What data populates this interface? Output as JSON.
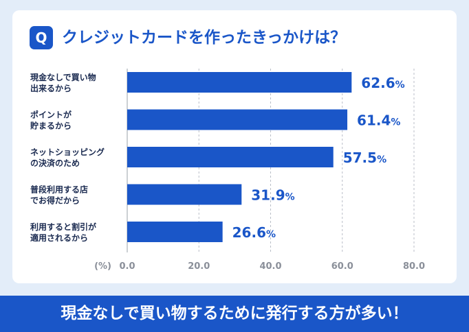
{
  "question_badge": "Q",
  "title": "クレジットカードを作ったきっかけは？",
  "footer_text": "現金なしで買い物するために発行する方が多い！",
  "colors": {
    "accent": "#1a56c8",
    "background": "#e3edf9",
    "card": "#ffffff",
    "axis_text": "#8a8f99"
  },
  "chart_data": {
    "type": "bar",
    "orientation": "horizontal",
    "title": "クレジットカードを作ったきっかけは？",
    "ylabel_unit": "(%)",
    "categories": [
      [
        "現金なしで買い物",
        "出来るから"
      ],
      [
        "ポイントが",
        "貯まるから"
      ],
      [
        "ネットショッピング",
        "の決済のため"
      ],
      [
        "普段利用する店",
        "でお得だから"
      ],
      [
        "利用すると割引が",
        "適用されるから"
      ]
    ],
    "values": [
      62.6,
      61.4,
      57.5,
      31.9,
      26.6
    ],
    "value_suffix": "%",
    "xlim": [
      0,
      80
    ],
    "xticks": [
      "0.0",
      "20.0",
      "40.0",
      "60.0",
      "80.0"
    ],
    "grid": "vertical-dashed"
  }
}
